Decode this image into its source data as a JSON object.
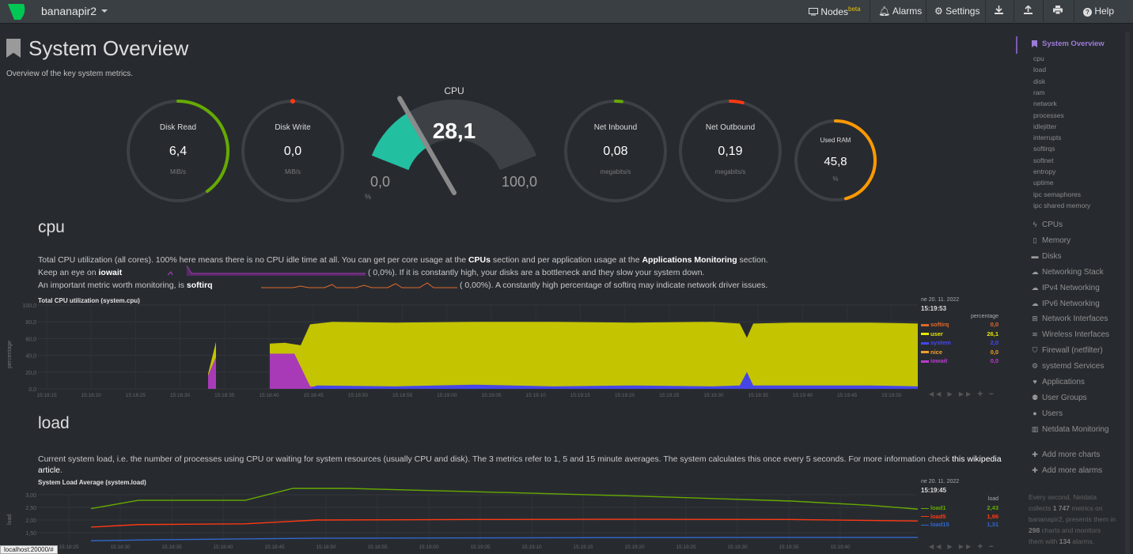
{
  "header": {
    "host": "bananapir2",
    "nav": [
      {
        "label": "Nodes",
        "badge": "beta",
        "icon": "monitor-icon"
      },
      {
        "label": "Alarms",
        "icon": "bell-icon"
      },
      {
        "label": "Settings",
        "icon": "gear-icon"
      },
      {
        "label": "",
        "icon": "download-icon"
      },
      {
        "label": "",
        "icon": "upload-icon"
      },
      {
        "label": "",
        "icon": "print-icon"
      },
      {
        "label": "Help",
        "icon": "question-icon"
      }
    ]
  },
  "page": {
    "title": "System Overview",
    "subtitle": "Overview of the key system metrics."
  },
  "gauges": {
    "disk_read": {
      "label": "Disk Read",
      "value": "6,4",
      "unit": "MiB/s",
      "fraction": 0.4,
      "color": "#66aa00"
    },
    "disk_write": {
      "label": "Disk Write",
      "value": "0,0",
      "unit": "MiB/s",
      "fraction": 0.0,
      "color": "#fe3912"
    },
    "cpu": {
      "label": "CPU",
      "value": "28,1",
      "min": "0,0",
      "max": "100,0",
      "unit": "%",
      "fraction": 0.281,
      "color": "#22bfa1"
    },
    "net_inbound": {
      "label": "Net Inbound",
      "value": "0,08",
      "unit": "megabits/s",
      "fraction": 0.02,
      "color": "#66aa00"
    },
    "net_outbound": {
      "label": "Net Outbound",
      "value": "0,19",
      "unit": "megabits/s",
      "fraction": 0.04,
      "color": "#fe3912"
    },
    "used_ram": {
      "label": "Used RAM",
      "value": "45,8",
      "unit": "%",
      "fraction": 0.458,
      "color": "#ff9900"
    }
  },
  "cpu_section": {
    "heading": "cpu",
    "desc1_a": "Total CPU utilization (all cores). 100% here means there is no CPU idle time at all. You can get per core usage at the ",
    "desc1_link1": "CPUs",
    "desc1_b": " section and per application usage at the ",
    "desc1_link2": "Applications Monitoring",
    "desc1_c": " section.",
    "desc2_a": "Keep an eye on ",
    "desc2_bold": "iowait",
    "desc2_b": "(        0,0%). If it is constantly high, your disks are a bottleneck and they slow your system down.",
    "desc3_a": "An important metric worth monitoring, is ",
    "desc3_bold": "softirq",
    "desc3_b": "(        0,00%). A constantly high percentage of softirq may indicate network driver issues.",
    "chart_title": "Total CPU utilization (system.cpu)",
    "ylabel": "percentage",
    "legend_date": "ne 20. 11. 2022",
    "legend_time": "15:19:53",
    "legend_units": "percentage",
    "legend": [
      {
        "name": "softirq",
        "value": "0,0",
        "color": "#e0692c"
      },
      {
        "name": "user",
        "value": "26,1",
        "color": "#e6e600"
      },
      {
        "name": "system",
        "value": "2,0",
        "color": "#4646f0"
      },
      {
        "name": "nice",
        "value": "0,0",
        "color": "#f0a028"
      },
      {
        "name": "iowait",
        "value": "0,0",
        "color": "#b93ccd"
      }
    ],
    "yticks": [
      "100,0",
      "80,0",
      "60,0",
      "40,0",
      "20,0",
      "0,0"
    ],
    "xticks": [
      "15:18:15",
      "15:18:20",
      "15:18:25",
      "15:18:30",
      "15:18:35",
      "15:18:40",
      "15:18:45",
      "15:18:50",
      "15:18:55",
      "15:19:00",
      "15:19:05",
      "15:19:10",
      "15:19:15",
      "15:19:20",
      "15:19:25",
      "15:19:30",
      "15:19:35",
      "15:19:40",
      "15:19:45",
      "15:19:50"
    ]
  },
  "load_section": {
    "heading": "load",
    "desc1": "Current system load, i.e. the number of processes using CPU or waiting for system resources (usually CPU and disk). The 3 metrics refer to 1, 5 and 15 minute averages. The system calculates this once every 5 seconds. For more information check ",
    "desc_link": "this wikipedia",
    "desc2_link": "article",
    "desc2_end": ".",
    "chart_title": "System Load Average (system.load)",
    "ylabel": "load",
    "legend_date": "ne 20. 11. 2022",
    "legend_time": "15:19:45",
    "legend_units": "load",
    "legend": [
      {
        "name": "load1",
        "value": "2,43",
        "color": "#66aa00"
      },
      {
        "name": "load5",
        "value": "1,96",
        "color": "#fe3912"
      },
      {
        "name": "load15",
        "value": "1,31",
        "color": "#3366cc"
      }
    ],
    "yticks": [
      "3,00",
      "2,50",
      "2,00",
      "1,50"
    ],
    "xticks": [
      "15:18:25",
      "15:18:30",
      "15:18:35",
      "15:18:40",
      "15:18:45",
      "15:18:50",
      "15:18:55",
      "15:19:00",
      "15:19:05",
      "15:19:10",
      "15:19:15",
      "15:19:20",
      "15:19:25",
      "15:19:30",
      "15:19:35",
      "15:19:40"
    ]
  },
  "sidebar": {
    "active": "System Overview",
    "sub": [
      "cpu",
      "load",
      "disk",
      "ram",
      "network",
      "processes",
      "idlejitter",
      "interrupts",
      "softirqs",
      "softnet",
      "entropy",
      "uptime",
      "ipc semaphores",
      "ipc shared memory"
    ],
    "items": [
      {
        "label": "CPUs",
        "icon": "bolt-icon",
        "glyph": "ϟ"
      },
      {
        "label": "Memory",
        "icon": "memory-icon",
        "glyph": "▯"
      },
      {
        "label": "Disks",
        "icon": "hdd-icon",
        "glyph": "▬"
      },
      {
        "label": "Networking Stack",
        "icon": "cloud-icon",
        "glyph": "☁"
      },
      {
        "label": "IPv4 Networking",
        "icon": "cloud-icon",
        "glyph": "☁"
      },
      {
        "label": "IPv6 Networking",
        "icon": "cloud-icon",
        "glyph": "☁"
      },
      {
        "label": "Network Interfaces",
        "icon": "sitemap-icon",
        "glyph": "⊞"
      },
      {
        "label": "Wireless Interfaces",
        "icon": "wifi-icon",
        "glyph": "≋"
      },
      {
        "label": "Firewall (netfilter)",
        "icon": "shield-icon",
        "glyph": "⛉"
      },
      {
        "label": "systemd Services",
        "icon": "cogs-icon",
        "glyph": "⚙"
      },
      {
        "label": "Applications",
        "icon": "heartbeat-icon",
        "glyph": "♥"
      },
      {
        "label": "User Groups",
        "icon": "users-icon",
        "glyph": "⚉"
      },
      {
        "label": "Users",
        "icon": "user-icon",
        "glyph": "●"
      },
      {
        "label": "Netdata Monitoring",
        "icon": "bar-chart-icon",
        "glyph": "▥"
      }
    ],
    "add_charts": "Add more charts",
    "add_alarms": "Add more alarms",
    "footer_a": "Every second, Netdata collects ",
    "footer_metrics": "1 747",
    "footer_b": " metrics on bananapir2, presents them in ",
    "footer_charts": "298",
    "footer_c": " charts and monitors them with ",
    "footer_alarms": "134",
    "footer_d": " alarms."
  },
  "status_url": "localhost:20000/#"
}
